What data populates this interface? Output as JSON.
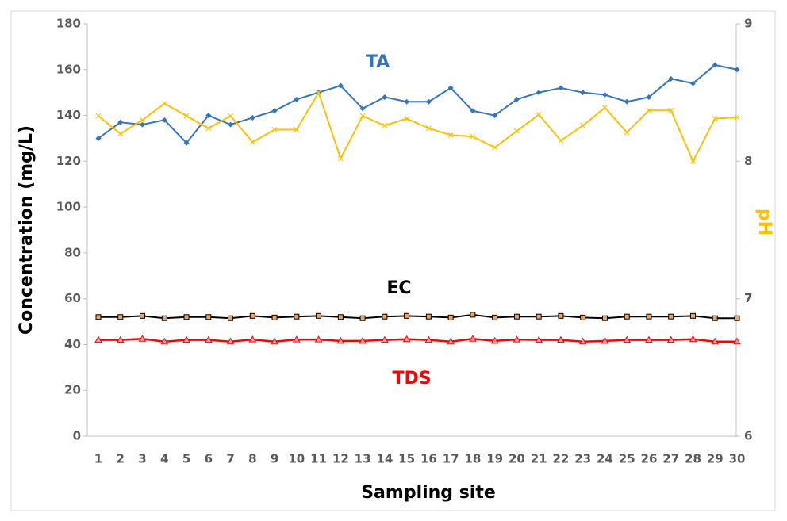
{
  "chart_data": {
    "type": "line",
    "xlabel": "Sampling site",
    "ylabel": "Concentration (mg/L)",
    "y2label": "pH",
    "categories": [
      "1",
      "2",
      "3",
      "4",
      "5",
      "6",
      "7",
      "8",
      "9",
      "10",
      "11",
      "12",
      "13",
      "14",
      "15",
      "16",
      "17",
      "18",
      "19",
      "20",
      "21",
      "22",
      "23",
      "24",
      "25",
      "26",
      "27",
      "28",
      "29",
      "30"
    ],
    "ylim": [
      0,
      180
    ],
    "yticks": [
      0,
      20,
      40,
      60,
      80,
      100,
      120,
      140,
      160,
      180
    ],
    "y2lim": [
      6,
      9
    ],
    "y2ticks": [
      6,
      7,
      8,
      9
    ],
    "series": [
      {
        "name": "TA",
        "color": "#3374c1",
        "marker": "diamond",
        "values": [
          130,
          137,
          136,
          138,
          128,
          140,
          136,
          139,
          142,
          147,
          150,
          153,
          143,
          148,
          146,
          146,
          152,
          142,
          140,
          147,
          150,
          152,
          150,
          149,
          146,
          148,
          156,
          154,
          162,
          160
        ]
      },
      {
        "name": "pH",
        "color": "#ffc000",
        "marker": "cross",
        "axis": "y2",
        "values": [
          8.33,
          8.2,
          8.3,
          8.42,
          8.33,
          8.24,
          8.33,
          8.14,
          8.23,
          8.23,
          8.5,
          8.02,
          8.33,
          8.26,
          8.31,
          8.24,
          8.19,
          8.18,
          8.1,
          8.22,
          8.34,
          8.15,
          8.26,
          8.39,
          8.21,
          8.37,
          8.37,
          8.0,
          8.31,
          8.32
        ]
      },
      {
        "name": "EC",
        "color": "#000000",
        "marker": "square",
        "values": [
          52,
          52,
          52.5,
          51.5,
          52,
          52,
          51.5,
          52.5,
          51.8,
          52.2,
          52.5,
          52,
          51.5,
          52.2,
          52.5,
          52.2,
          51.8,
          53,
          51.8,
          52.2,
          52.2,
          52.5,
          51.8,
          51.5,
          52.2,
          52.2,
          52.2,
          52.5,
          51.5,
          51.5
        ]
      },
      {
        "name": "TDS",
        "color": "#ff0000",
        "marker": "triangle",
        "values": [
          42,
          42,
          42.5,
          41.3,
          42,
          42,
          41.3,
          42.2,
          41.3,
          42.2,
          42.2,
          41.6,
          41.6,
          42,
          42.3,
          42,
          41.3,
          42.5,
          41.6,
          42.2,
          42,
          42,
          41.3,
          41.6,
          42,
          42,
          42,
          42.3,
          41.3,
          41.3
        ]
      }
    ]
  }
}
